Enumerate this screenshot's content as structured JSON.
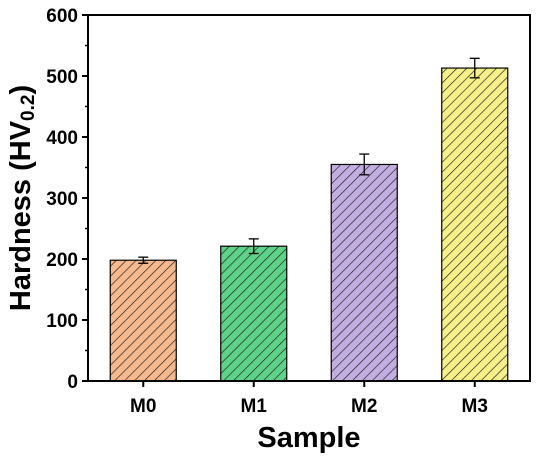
{
  "chart_data": {
    "type": "bar",
    "title": "",
    "xlabel": "Sample",
    "ylabel": "Hardness (HV",
    "ylabel_sub": "0.2",
    "ylabel_close": ")",
    "categories": [
      "M0",
      "M1",
      "M2",
      "M3"
    ],
    "values": [
      198,
      221,
      355,
      513
    ],
    "errors": [
      5,
      12,
      17,
      16
    ],
    "colors": [
      "#f6b98e",
      "#5ed288",
      "#c3aee2",
      "#f7f08a"
    ],
    "pattern": "diagonal-hatch",
    "ylim": [
      0,
      600
    ],
    "yticks": [
      0,
      100,
      200,
      300,
      400,
      500,
      600
    ],
    "grid": false,
    "legend": "none"
  }
}
